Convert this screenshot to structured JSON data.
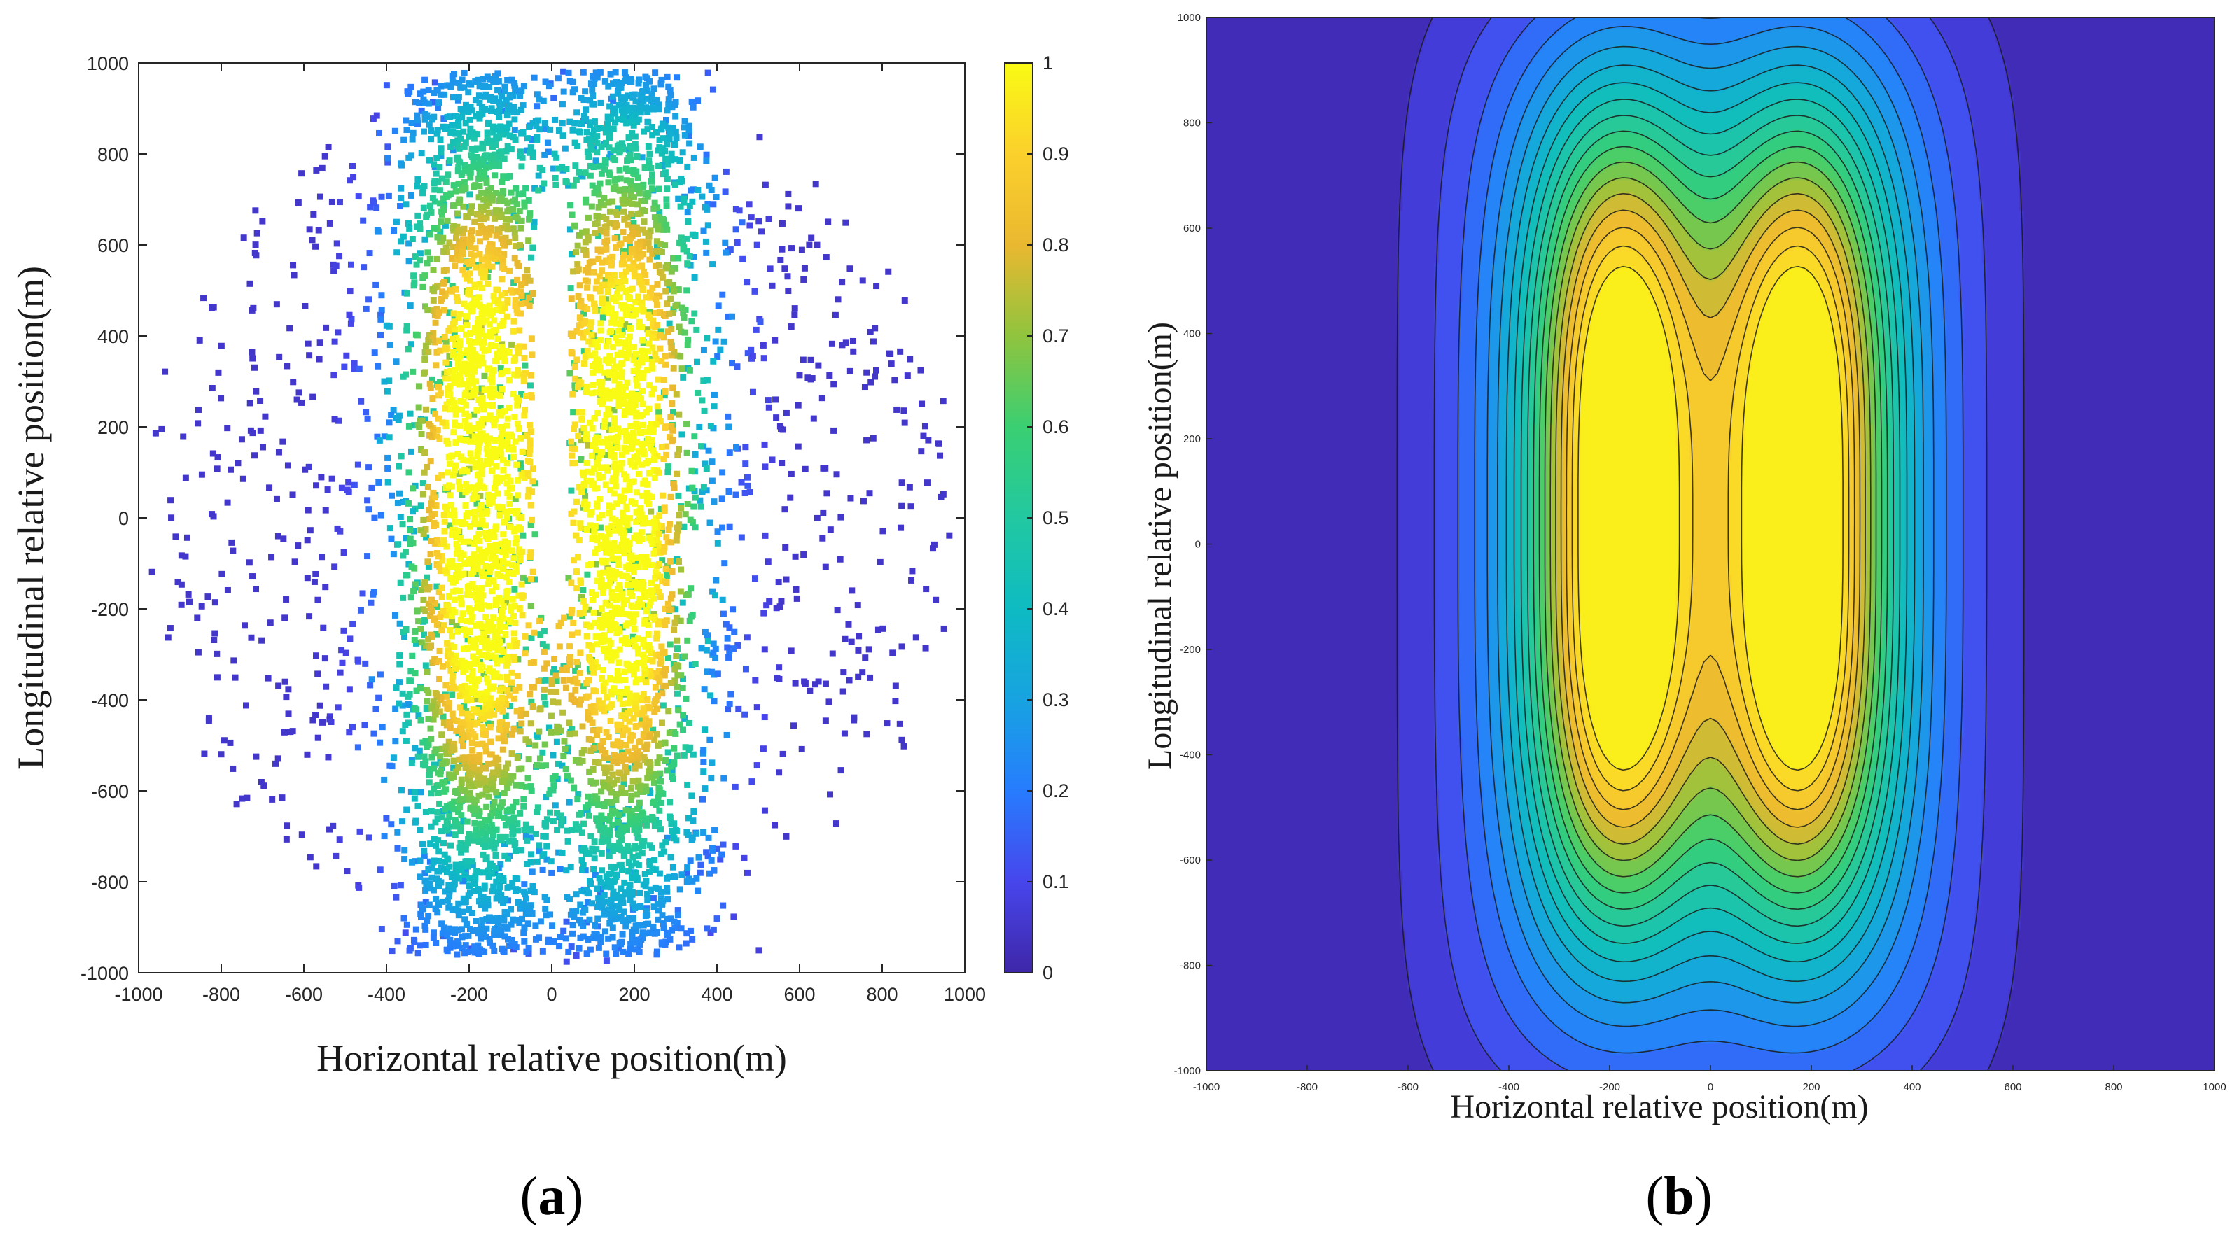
{
  "chart_data": [
    {
      "type": "scatter",
      "panel": "a",
      "panel_label": "a",
      "xlabel": "Horizontal relative position(m)",
      "ylabel": "Longitudinal relative position(m)",
      "xlim": [
        -1000,
        1000
      ],
      "ylim": [
        -1000,
        1000
      ],
      "xticks": [
        -1000,
        -800,
        -600,
        -400,
        -200,
        0,
        200,
        400,
        600,
        800,
        1000
      ],
      "yticks": [
        -1000,
        -800,
        -600,
        -400,
        -200,
        0,
        200,
        400,
        600,
        800,
        1000
      ],
      "colorbar": {
        "range": [
          0,
          1
        ],
        "ticks": [
          0,
          0.1,
          0.2,
          0.3,
          0.4,
          0.5,
          0.6,
          0.7,
          0.8,
          0.9,
          1
        ],
        "colormap": "parula"
      },
      "description_of_data": {
        "distribution": "two vertical bands of high density centred near x = -180 and x = 180, spanning y = -950 to 980, sparse points out to |x| about 980, empty gap around x = 0 for y from -200 to 700",
        "peak_centers_x": [
          -180,
          180
        ],
        "max_value": 1
      }
    },
    {
      "type": "contour",
      "panel": "b",
      "panel_label": "b",
      "xlabel": "Horizontal relative position(m)",
      "ylabel": "Longitudinal relative position(m)",
      "xlim": [
        -1000,
        1000
      ],
      "ylim": [
        -1000,
        1000
      ],
      "xticks": [
        -1000,
        -800,
        -600,
        -400,
        -200,
        0,
        200,
        400,
        600,
        800,
        1000
      ],
      "yticks": [
        -1000,
        -800,
        -600,
        -400,
        -200,
        0,
        200,
        400,
        600,
        800,
        1000
      ],
      "levels": [
        0.05,
        0.1,
        0.15,
        0.2,
        0.25,
        0.3,
        0.35,
        0.4,
        0.45,
        0.5,
        0.55,
        0.6,
        0.65,
        0.7,
        0.75,
        0.8,
        0.85,
        0.9,
        0.95
      ],
      "peak_centers_x": [
        -180,
        180
      ],
      "peak_center_y": 50,
      "max_value": 1
    }
  ]
}
